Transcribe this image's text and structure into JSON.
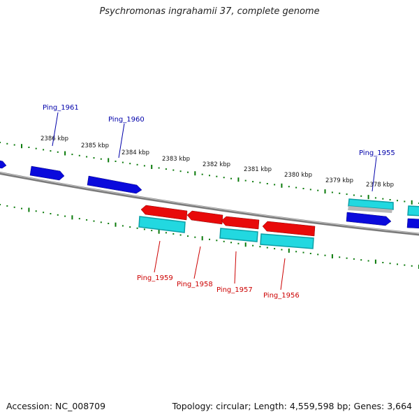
{
  "title": "Psychromonas ingrahamii 37, complete genome",
  "accession": "Accession: NC_008709",
  "summary": "Topology: circular; Length: 4,559,598 bp; Genes: 3,664",
  "colors": {
    "forward_gene": "#0a0adc",
    "reverse_gene": "#e80a0a",
    "cds_top": "#22d8e0",
    "cds_bottom": "#0c9fa6",
    "tick": "#0a7a0a",
    "backbone": "#7a7a7a",
    "forward_label": "#0000aa",
    "reverse_label": "#cc0000"
  },
  "ticks": [
    {
      "label": "2386 kbp"
    },
    {
      "label": "2385 kbp"
    },
    {
      "label": "2384 kbp"
    },
    {
      "label": "2383 kbp"
    },
    {
      "label": "2382 kbp"
    },
    {
      "label": "2381 kbp"
    },
    {
      "label": "2380 kbp"
    },
    {
      "label": "2379 kbp"
    },
    {
      "label": "2378 kbp"
    }
  ],
  "genes": [
    {
      "name": "Ping_1961",
      "strand": "forward"
    },
    {
      "name": "Ping_1960",
      "strand": "forward"
    },
    {
      "name": "Ping_1955",
      "strand": "forward"
    },
    {
      "name": "Ping_1959",
      "strand": "reverse"
    },
    {
      "name": "Ping_1958",
      "strand": "reverse"
    },
    {
      "name": "Ping_1957",
      "strand": "reverse"
    },
    {
      "name": "Ping_1956",
      "strand": "reverse"
    }
  ]
}
